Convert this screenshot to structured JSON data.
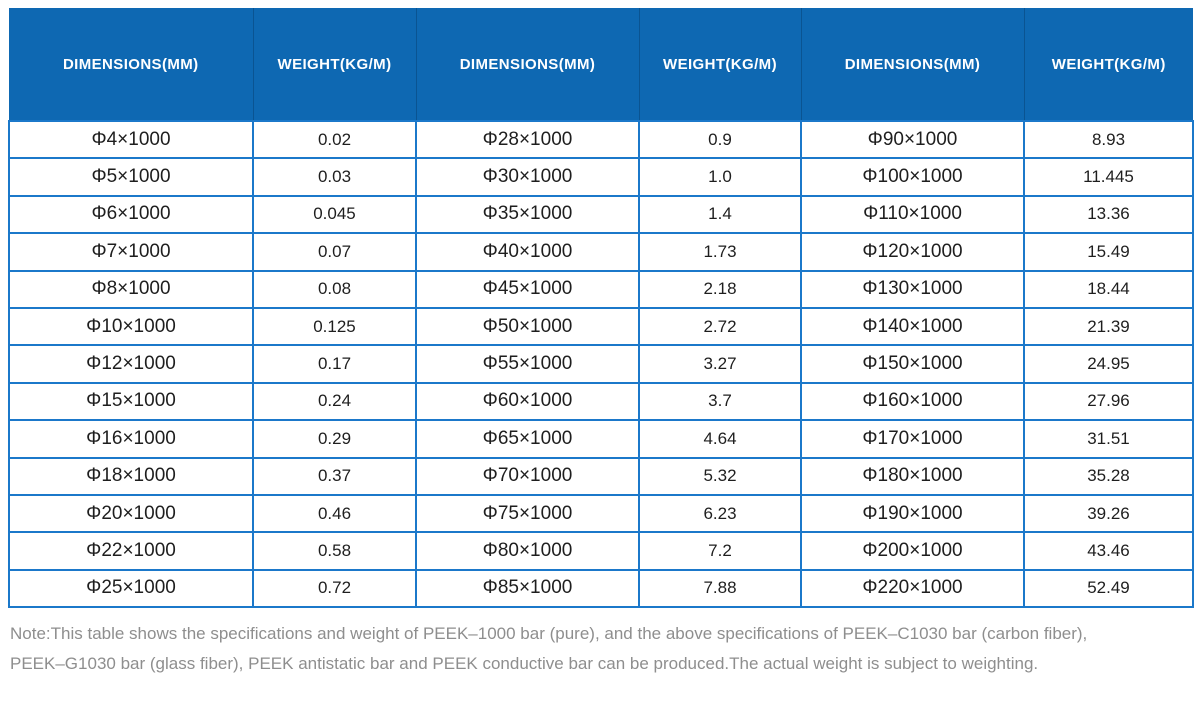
{
  "table": {
    "headers": [
      "DIMENSIONS(MM)",
      "WEIGHT(KG/M)",
      "DIMENSIONS(MM)",
      "WEIGHT(KG/M)",
      "DIMENSIONS(MM)",
      "WEIGHT(KG/M)"
    ],
    "rows": [
      [
        "Φ4×1000",
        "0.02",
        "Φ28×1000",
        "0.9",
        "Φ90×1000",
        "8.93"
      ],
      [
        "Φ5×1000",
        "0.03",
        "Φ30×1000",
        "1.0",
        "Φ100×1000",
        "11.445"
      ],
      [
        "Φ6×1000",
        "0.045",
        "Φ35×1000",
        "1.4",
        "Φ110×1000",
        "13.36"
      ],
      [
        "Φ7×1000",
        "0.07",
        "Φ40×1000",
        "1.73",
        "Φ120×1000",
        "15.49"
      ],
      [
        "Φ8×1000",
        "0.08",
        "Φ45×1000",
        "2.18",
        "Φ130×1000",
        "18.44"
      ],
      [
        "Φ10×1000",
        "0.125",
        "Φ50×1000",
        "2.72",
        "Φ140×1000",
        "21.39"
      ],
      [
        "Φ12×1000",
        "0.17",
        "Φ55×1000",
        "3.27",
        "Φ150×1000",
        "24.95"
      ],
      [
        "Φ15×1000",
        "0.24",
        "Φ60×1000",
        "3.7",
        "Φ160×1000",
        "27.96"
      ],
      [
        "Φ16×1000",
        "0.29",
        "Φ65×1000",
        "4.64",
        "Φ170×1000",
        "31.51"
      ],
      [
        "Φ18×1000",
        "0.37",
        "Φ70×1000",
        "5.32",
        "Φ180×1000",
        "35.28"
      ],
      [
        "Φ20×1000",
        "0.46",
        "Φ75×1000",
        "6.23",
        "Φ190×1000",
        "39.26"
      ],
      [
        "Φ22×1000",
        "0.58",
        "Φ80×1000",
        "7.2",
        "Φ200×1000",
        "43.46"
      ],
      [
        "Φ25×1000",
        "0.72",
        "Φ85×1000",
        "7.88",
        "Φ220×1000",
        "52.49"
      ]
    ]
  },
  "note": {
    "lines": [
      "Note:This table shows the specifications and weight of PEEK–1000 bar (pure), and the above specifications of PEEK–C1030 bar (carbon fiber),",
      "PEEK–G1030 bar (glass fiber), PEEK antistatic bar and PEEK conductive bar can be produced.The actual weight is subject to weighting."
    ]
  },
  "colors": {
    "header_blue": "#0e68b2",
    "grid_border": "#1b78ca",
    "note_gray": "#8e8e8e"
  }
}
